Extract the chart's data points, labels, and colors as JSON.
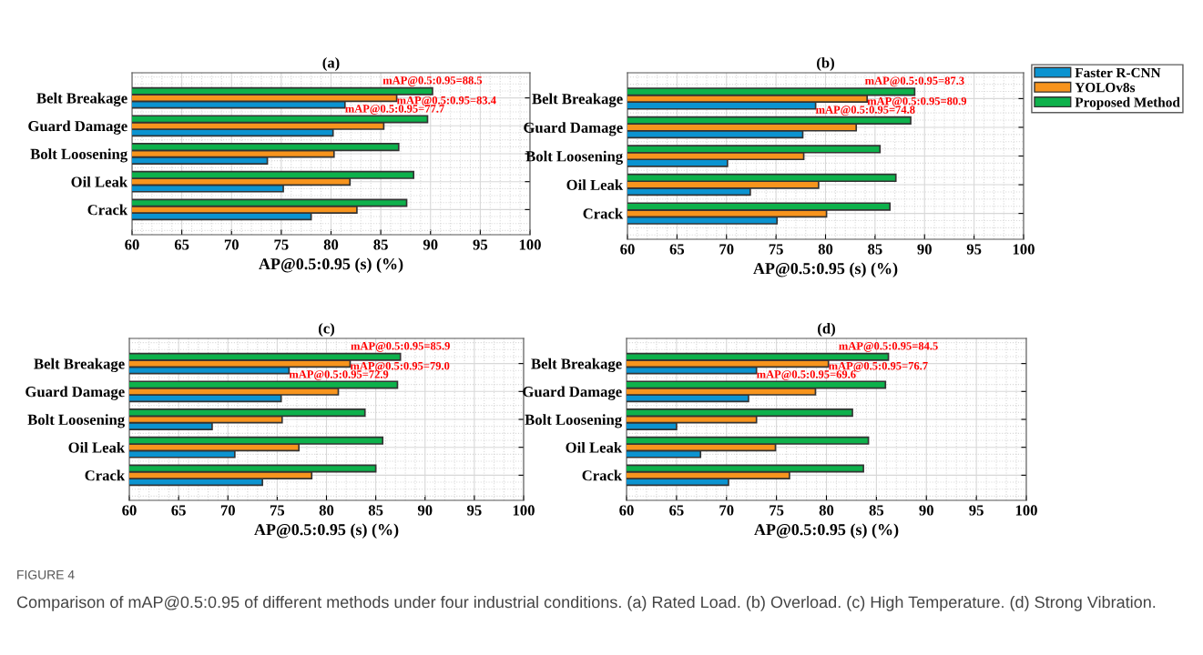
{
  "chart_data": [
    {
      "type": "bar",
      "orientation": "horizontal",
      "title": "(a)",
      "xlabel": "AP@0.5:0.95 (s) (%)",
      "categories": [
        "Belt Breakage",
        "Guard Damage",
        "Bolt Loosening",
        "Oil Leak",
        "Crack"
      ],
      "series": [
        {
          "color": "#0b93d0",
          "values": [
            81.4,
            80.2,
            73.6,
            75.2,
            78.0
          ]
        },
        {
          "color": "#f7941d",
          "values": [
            86.6,
            85.3,
            80.3,
            81.9,
            82.6
          ]
        },
        {
          "color": "#0db14b",
          "values": [
            90.2,
            89.7,
            86.8,
            88.3,
            87.6
          ]
        }
      ],
      "xlim": [
        60,
        100
      ],
      "xticks": [
        60,
        65,
        70,
        75,
        80,
        85,
        90,
        95,
        100
      ],
      "grid": true,
      "legend": false,
      "annotations": [
        "mAP@0.5:0.95=88.5",
        "mAP@0.5:0.95=83.4",
        "mAP@0.5:0.95=77.7"
      ]
    },
    {
      "type": "bar",
      "orientation": "horizontal",
      "title": "(b)",
      "xlabel": "AP@0.5:0.95 (s) (%)",
      "categories": [
        "Belt Breakage",
        "Guard Damage",
        "Bolt Loosening",
        "Oil Leak",
        "Crack"
      ],
      "series": [
        {
          "name": "Faster R-CNN",
          "color": "#0b93d0",
          "values": [
            79.0,
            77.7,
            70.1,
            72.4,
            75.1
          ]
        },
        {
          "name": "YOLOv8s",
          "color": "#f7941d",
          "values": [
            84.2,
            83.1,
            77.8,
            79.3,
            80.1
          ]
        },
        {
          "name": "Proposed Method",
          "color": "#0db14b",
          "values": [
            89.0,
            88.6,
            85.5,
            87.1,
            86.5
          ]
        }
      ],
      "xlim": [
        60,
        100
      ],
      "xticks": [
        60,
        65,
        70,
        75,
        80,
        85,
        90,
        95,
        100
      ],
      "grid": true,
      "legend": "top right",
      "annotations": [
        "mAP@0.5:0.95=87.3",
        "mAP@0.5:0.95=80.9",
        "mAP@0.5:0.95=74.8"
      ]
    },
    {
      "type": "bar",
      "orientation": "horizontal",
      "title": "(c)",
      "xlabel": "AP@0.5:0.95 (s) (%)",
      "categories": [
        "Belt Breakage",
        "Guard Damage",
        "Bolt Loosening",
        "Oil Leak",
        "Crack"
      ],
      "series": [
        {
          "color": "#0b93d0",
          "values": [
            76.2,
            75.4,
            68.4,
            70.7,
            73.5
          ]
        },
        {
          "color": "#f7941d",
          "values": [
            82.4,
            81.2,
            75.5,
            77.2,
            78.5
          ]
        },
        {
          "color": "#0db14b",
          "values": [
            87.5,
            87.2,
            83.9,
            85.7,
            85.0
          ]
        }
      ],
      "xlim": [
        60,
        100
      ],
      "xticks": [
        60,
        65,
        70,
        75,
        80,
        85,
        90,
        95,
        100
      ],
      "grid": true,
      "legend": false,
      "annotations": [
        "mAP@0.5:0.95=85.9",
        "mAP@0.5:0.95=79.0",
        "mAP@0.5:0.95=72.9"
      ]
    },
    {
      "type": "bar",
      "orientation": "horizontal",
      "title": "(d)",
      "xlabel": "AP@0.5:0.95 (s) (%)",
      "categories": [
        "Belt Breakage",
        "Guard Damage",
        "Bolt Loosening",
        "Oil Leak",
        "Crack"
      ],
      "series": [
        {
          "color": "#0b93d0",
          "values": [
            73.0,
            72.2,
            65.0,
            67.4,
            70.2
          ]
        },
        {
          "color": "#f7941d",
          "values": [
            80.2,
            78.9,
            73.0,
            74.9,
            76.3
          ]
        },
        {
          "color": "#0db14b",
          "values": [
            86.2,
            85.9,
            82.6,
            84.2,
            83.7
          ]
        }
      ],
      "xlim": [
        60,
        100
      ],
      "xticks": [
        60,
        65,
        70,
        75,
        80,
        85,
        90,
        95,
        100
      ],
      "grid": true,
      "legend": false,
      "annotations": [
        "mAP@0.5:0.95=84.5",
        "mAP@0.5:0.95=76.7",
        "mAP@0.5:0.95=69.6",
        "FIGURE 4",
        "Comparison of mAP@0.5:0.95 of different methods under four industrial conditions. (a) Rated Load. (b) Overload. (c) High Temperature. (d) Strong Vibration."
      ]
    }
  ]
}
